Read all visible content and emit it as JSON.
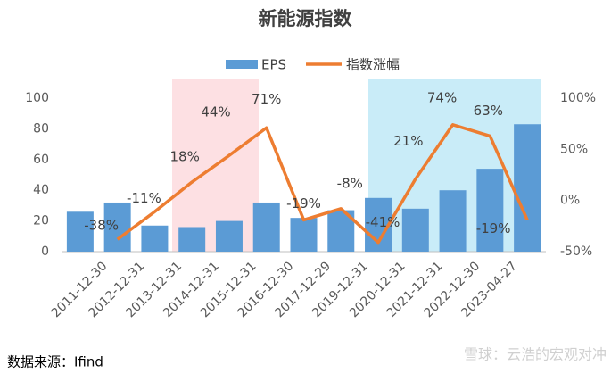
{
  "chart_data": {
    "type": "bar-line",
    "title": "新能源指数",
    "categories": [
      "2011-12-30",
      "2012-12-31",
      "2013-12-31",
      "2014-12-31",
      "2015-12-31",
      "2016-12-30",
      "2017-12-29",
      "2019-12-31",
      "2020-12-31",
      "2021-12-31",
      "2022-12-30",
      "2023-04-27",
      null
    ],
    "series": [
      {
        "name": "EPS",
        "type": "bar",
        "color": "#5b9bd5",
        "values": [
          26,
          32,
          17,
          16,
          20,
          32,
          22,
          27,
          35,
          28,
          40,
          54,
          83
        ]
      },
      {
        "name": "指数涨幅",
        "type": "line",
        "axis": "y2",
        "color": "#ed7d31",
        "values": [
          null,
          -38,
          -11,
          18,
          44,
          71,
          -19,
          -8,
          -41,
          21,
          74,
          63,
          -19
        ],
        "value_labels": [
          null,
          "-38%",
          "-11%",
          "18%",
          "44%",
          "71%",
          "-19%",
          "-8%",
          "-41%",
          "21%",
          "74%",
          "63%",
          "-19%"
        ]
      }
    ],
    "ylim": [
      0,
      100
    ],
    "yticks": [
      0,
      20,
      40,
      60,
      80,
      100
    ],
    "y2lim": [
      -50,
      100
    ],
    "y2ticks": [
      {
        "value": -50,
        "label": "-50%"
      },
      {
        "value": 0,
        "label": "0%"
      },
      {
        "value": 50,
        "label": "50%"
      },
      {
        "value": 100,
        "label": "100%"
      }
    ],
    "grid": false,
    "legend": "top",
    "source": "数据来源：Ifind",
    "watermark": "雪球：云浩的宏观对冲"
  }
}
